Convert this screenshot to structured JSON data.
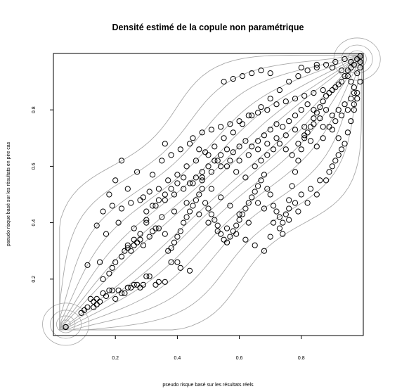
{
  "chart_data": {
    "type": "scatter",
    "title": "Densité estimé de la copule non paramétrique",
    "xlabel": "pseudo risque basé sur les résultats réels",
    "ylabel": "pseudo risque basé sur les résultats en pire cas",
    "xlim": [
      0,
      1
    ],
    "ylim": [
      0,
      1
    ],
    "xticks": [
      "0.2",
      "0.4",
      "0.6",
      "0.8"
    ],
    "yticks": [
      "0.2",
      "0.4",
      "0.6",
      "0.8"
    ],
    "grid": false,
    "legend": "none",
    "contours": "gray density contour lines along the diagonal",
    "point_color": "#000000",
    "contour_color": "#a8a8a8",
    "points": [
      [
        0.04,
        0.03
      ],
      [
        0.04,
        0.03
      ],
      [
        0.09,
        0.08
      ],
      [
        0.1,
        0.09
      ],
      [
        0.11,
        0.1
      ],
      [
        0.12,
        0.13
      ],
      [
        0.13,
        0.1
      ],
      [
        0.13,
        0.12
      ],
      [
        0.14,
        0.13
      ],
      [
        0.14,
        0.11
      ],
      [
        0.15,
        0.12
      ],
      [
        0.16,
        0.15
      ],
      [
        0.17,
        0.14
      ],
      [
        0.18,
        0.16
      ],
      [
        0.19,
        0.16
      ],
      [
        0.2,
        0.13
      ],
      [
        0.21,
        0.16
      ],
      [
        0.22,
        0.15
      ],
      [
        0.23,
        0.15
      ],
      [
        0.24,
        0.17
      ],
      [
        0.25,
        0.17
      ],
      [
        0.26,
        0.18
      ],
      [
        0.27,
        0.18
      ],
      [
        0.28,
        0.17
      ],
      [
        0.29,
        0.18
      ],
      [
        0.3,
        0.21
      ],
      [
        0.31,
        0.21
      ],
      [
        0.33,
        0.18
      ],
      [
        0.34,
        0.19
      ],
      [
        0.36,
        0.19
      ],
      [
        0.38,
        0.26
      ],
      [
        0.4,
        0.26
      ],
      [
        0.41,
        0.24
      ],
      [
        0.44,
        0.23
      ],
      [
        0.11,
        0.25
      ],
      [
        0.15,
        0.26
      ],
      [
        0.19,
        0.24
      ],
      [
        0.23,
        0.3
      ],
      [
        0.24,
        0.31
      ],
      [
        0.25,
        0.3
      ],
      [
        0.26,
        0.32
      ],
      [
        0.27,
        0.33
      ],
      [
        0.28,
        0.34
      ],
      [
        0.29,
        0.32
      ],
      [
        0.31,
        0.35
      ],
      [
        0.32,
        0.37
      ],
      [
        0.33,
        0.38
      ],
      [
        0.34,
        0.38
      ],
      [
        0.36,
        0.36
      ],
      [
        0.37,
        0.3
      ],
      [
        0.38,
        0.31
      ],
      [
        0.39,
        0.33
      ],
      [
        0.4,
        0.35
      ],
      [
        0.41,
        0.37
      ],
      [
        0.42,
        0.4
      ],
      [
        0.43,
        0.42
      ],
      [
        0.44,
        0.44
      ],
      [
        0.45,
        0.46
      ],
      [
        0.46,
        0.48
      ],
      [
        0.47,
        0.5
      ],
      [
        0.48,
        0.52
      ],
      [
        0.49,
        0.47
      ],
      [
        0.5,
        0.45
      ],
      [
        0.51,
        0.43
      ],
      [
        0.52,
        0.41
      ],
      [
        0.53,
        0.39
      ],
      [
        0.54,
        0.36
      ],
      [
        0.55,
        0.34
      ],
      [
        0.56,
        0.33
      ],
      [
        0.57,
        0.35
      ],
      [
        0.58,
        0.37
      ],
      [
        0.59,
        0.39
      ],
      [
        0.6,
        0.41
      ],
      [
        0.61,
        0.43
      ],
      [
        0.62,
        0.45
      ],
      [
        0.63,
        0.47
      ],
      [
        0.64,
        0.49
      ],
      [
        0.65,
        0.51
      ],
      [
        0.66,
        0.53
      ],
      [
        0.67,
        0.55
      ],
      [
        0.68,
        0.57
      ],
      [
        0.69,
        0.52
      ],
      [
        0.7,
        0.5
      ],
      [
        0.71,
        0.46
      ],
      [
        0.72,
        0.44
      ],
      [
        0.73,
        0.42
      ],
      [
        0.74,
        0.4
      ],
      [
        0.75,
        0.43
      ],
      [
        0.76,
        0.48
      ],
      [
        0.77,
        0.53
      ],
      [
        0.78,
        0.58
      ],
      [
        0.79,
        0.62
      ],
      [
        0.8,
        0.66
      ],
      [
        0.81,
        0.7
      ],
      [
        0.82,
        0.72
      ],
      [
        0.83,
        0.74
      ],
      [
        0.84,
        0.77
      ],
      [
        0.85,
        0.79
      ],
      [
        0.86,
        0.81
      ],
      [
        0.87,
        0.83
      ],
      [
        0.88,
        0.85
      ],
      [
        0.89,
        0.86
      ],
      [
        0.9,
        0.87
      ],
      [
        0.91,
        0.88
      ],
      [
        0.92,
        0.89
      ],
      [
        0.93,
        0.9
      ],
      [
        0.94,
        0.92
      ],
      [
        0.95,
        0.94
      ],
      [
        0.96,
        0.95
      ],
      [
        0.97,
        0.96
      ],
      [
        0.98,
        0.98
      ],
      [
        0.99,
        0.99
      ],
      [
        0.16,
        0.44
      ],
      [
        0.19,
        0.46
      ],
      [
        0.22,
        0.45
      ],
      [
        0.25,
        0.47
      ],
      [
        0.28,
        0.48
      ],
      [
        0.31,
        0.51
      ],
      [
        0.34,
        0.52
      ],
      [
        0.37,
        0.55
      ],
      [
        0.4,
        0.57
      ],
      [
        0.43,
        0.6
      ],
      [
        0.46,
        0.62
      ],
      [
        0.49,
        0.65
      ],
      [
        0.52,
        0.67
      ],
      [
        0.55,
        0.7
      ],
      [
        0.58,
        0.72
      ],
      [
        0.61,
        0.75
      ],
      [
        0.64,
        0.78
      ],
      [
        0.67,
        0.81
      ],
      [
        0.7,
        0.84
      ],
      [
        0.73,
        0.87
      ],
      [
        0.76,
        0.9
      ],
      [
        0.79,
        0.92
      ],
      [
        0.82,
        0.94
      ],
      [
        0.85,
        0.95
      ],
      [
        0.88,
        0.96
      ],
      [
        0.91,
        0.97
      ],
      [
        0.94,
        0.98
      ],
      [
        0.96,
        0.97
      ],
      [
        0.55,
        0.9
      ],
      [
        0.58,
        0.91
      ],
      [
        0.61,
        0.92
      ],
      [
        0.64,
        0.93
      ],
      [
        0.67,
        0.94
      ],
      [
        0.7,
        0.93
      ],
      [
        0.8,
        0.95
      ],
      [
        0.85,
        0.96
      ],
      [
        0.9,
        0.95
      ],
      [
        0.93,
        0.94
      ],
      [
        0.95,
        0.92
      ],
      [
        0.96,
        0.9
      ],
      [
        0.97,
        0.88
      ],
      [
        0.98,
        0.93
      ],
      [
        0.99,
        0.95
      ],
      [
        0.45,
        0.7
      ],
      [
        0.48,
        0.72
      ],
      [
        0.51,
        0.73
      ],
      [
        0.54,
        0.74
      ],
      [
        0.57,
        0.75
      ],
      [
        0.6,
        0.76
      ],
      [
        0.63,
        0.78
      ],
      [
        0.66,
        0.79
      ],
      [
        0.69,
        0.8
      ],
      [
        0.72,
        0.82
      ],
      [
        0.75,
        0.83
      ],
      [
        0.78,
        0.84
      ],
      [
        0.81,
        0.85
      ],
      [
        0.84,
        0.86
      ],
      [
        0.87,
        0.87
      ],
      [
        0.6,
        0.62
      ],
      [
        0.63,
        0.64
      ],
      [
        0.66,
        0.66
      ],
      [
        0.69,
        0.68
      ],
      [
        0.72,
        0.7
      ],
      [
        0.75,
        0.71
      ],
      [
        0.78,
        0.73
      ],
      [
        0.81,
        0.74
      ],
      [
        0.84,
        0.75
      ],
      [
        0.87,
        0.74
      ],
      [
        0.9,
        0.73
      ],
      [
        0.92,
        0.7
      ],
      [
        0.93,
        0.66
      ],
      [
        0.91,
        0.62
      ],
      [
        0.89,
        0.58
      ],
      [
        0.86,
        0.55
      ],
      [
        0.83,
        0.52
      ],
      [
        0.8,
        0.5
      ],
      [
        0.78,
        0.47
      ],
      [
        0.76,
        0.45
      ],
      [
        0.35,
        0.62
      ],
      [
        0.38,
        0.64
      ],
      [
        0.41,
        0.66
      ],
      [
        0.44,
        0.68
      ],
      [
        0.47,
        0.66
      ],
      [
        0.5,
        0.64
      ],
      [
        0.53,
        0.62
      ],
      [
        0.56,
        0.6
      ],
      [
        0.59,
        0.58
      ],
      [
        0.62,
        0.56
      ],
      [
        0.3,
        0.44
      ],
      [
        0.33,
        0.46
      ],
      [
        0.36,
        0.48
      ],
      [
        0.39,
        0.5
      ],
      [
        0.42,
        0.52
      ],
      [
        0.45,
        0.54
      ],
      [
        0.48,
        0.56
      ],
      [
        0.51,
        0.58
      ],
      [
        0.54,
        0.6
      ],
      [
        0.57,
        0.62
      ],
      [
        0.2,
        0.55
      ],
      [
        0.22,
        0.62
      ],
      [
        0.27,
        0.58
      ],
      [
        0.32,
        0.57
      ],
      [
        0.36,
        0.68
      ],
      [
        0.24,
        0.52
      ],
      [
        0.29,
        0.49
      ],
      [
        0.18,
        0.5
      ],
      [
        0.14,
        0.39
      ],
      [
        0.17,
        0.36
      ],
      [
        0.21,
        0.4
      ],
      [
        0.26,
        0.38
      ],
      [
        0.3,
        0.41
      ],
      [
        0.35,
        0.42
      ],
      [
        0.39,
        0.44
      ],
      [
        0.43,
        0.47
      ],
      [
        0.47,
        0.43
      ],
      [
        0.5,
        0.4
      ],
      [
        0.53,
        0.37
      ],
      [
        0.56,
        0.38
      ],
      [
        0.59,
        0.36
      ],
      [
        0.62,
        0.34
      ],
      [
        0.65,
        0.32
      ],
      [
        0.68,
        0.3
      ],
      [
        0.7,
        0.35
      ],
      [
        0.73,
        0.38
      ],
      [
        0.76,
        0.41
      ],
      [
        0.79,
        0.44
      ],
      [
        0.82,
        0.47
      ],
      [
        0.85,
        0.5
      ],
      [
        0.88,
        0.55
      ],
      [
        0.9,
        0.6
      ],
      [
        0.92,
        0.64
      ],
      [
        0.94,
        0.68
      ],
      [
        0.95,
        0.72
      ],
      [
        0.96,
        0.76
      ],
      [
        0.97,
        0.8
      ],
      [
        0.98,
        0.84
      ],
      [
        0.97,
        0.86
      ],
      [
        0.96,
        0.84
      ],
      [
        0.94,
        0.82
      ],
      [
        0.92,
        0.8
      ],
      [
        0.9,
        0.78
      ],
      [
        0.88,
        0.8
      ],
      [
        0.86,
        0.77
      ],
      [
        0.84,
        0.8
      ],
      [
        0.82,
        0.82
      ],
      [
        0.8,
        0.8
      ],
      [
        0.78,
        0.78
      ],
      [
        0.76,
        0.76
      ],
      [
        0.74,
        0.74
      ],
      [
        0.72,
        0.75
      ],
      [
        0.7,
        0.73
      ],
      [
        0.68,
        0.71
      ],
      [
        0.66,
        0.69
      ],
      [
        0.64,
        0.67
      ],
      [
        0.62,
        0.69
      ],
      [
        0.6,
        0.67
      ],
      [
        0.58,
        0.65
      ],
      [
        0.56,
        0.66
      ],
      [
        0.54,
        0.64
      ],
      [
        0.52,
        0.62
      ],
      [
        0.5,
        0.6
      ],
      [
        0.48,
        0.58
      ],
      [
        0.46,
        0.56
      ],
      [
        0.44,
        0.54
      ],
      [
        0.42,
        0.56
      ],
      [
        0.4,
        0.54
      ],
      [
        0.38,
        0.52
      ],
      [
        0.36,
        0.5
      ],
      [
        0.34,
        0.48
      ],
      [
        0.32,
        0.46
      ],
      [
        0.3,
        0.4
      ],
      [
        0.28,
        0.36
      ],
      [
        0.26,
        0.34
      ],
      [
        0.24,
        0.32
      ],
      [
        0.22,
        0.28
      ],
      [
        0.2,
        0.26
      ],
      [
        0.18,
        0.22
      ],
      [
        0.16,
        0.2
      ],
      [
        0.66,
        0.47
      ],
      [
        0.68,
        0.45
      ],
      [
        0.71,
        0.4
      ],
      [
        0.74,
        0.36
      ],
      [
        0.63,
        0.4
      ],
      [
        0.6,
        0.43
      ],
      [
        0.57,
        0.46
      ],
      [
        0.54,
        0.49
      ],
      [
        0.51,
        0.52
      ],
      [
        0.48,
        0.55
      ],
      [
        0.65,
        0.6
      ],
      [
        0.67,
        0.62
      ],
      [
        0.69,
        0.64
      ],
      [
        0.71,
        0.66
      ],
      [
        0.73,
        0.68
      ],
      [
        0.75,
        0.66
      ],
      [
        0.77,
        0.64
      ],
      [
        0.79,
        0.68
      ],
      [
        0.81,
        0.71
      ],
      [
        0.83,
        0.69
      ],
      [
        0.85,
        0.67
      ],
      [
        0.87,
        0.7
      ],
      [
        0.89,
        0.74
      ],
      [
        0.91,
        0.76
      ],
      [
        0.93,
        0.78
      ],
      [
        0.95,
        0.8
      ],
      [
        0.97,
        0.82
      ],
      [
        0.98,
        0.86
      ],
      [
        0.99,
        0.9
      ],
      [
        0.99,
        0.97
      ]
    ]
  }
}
